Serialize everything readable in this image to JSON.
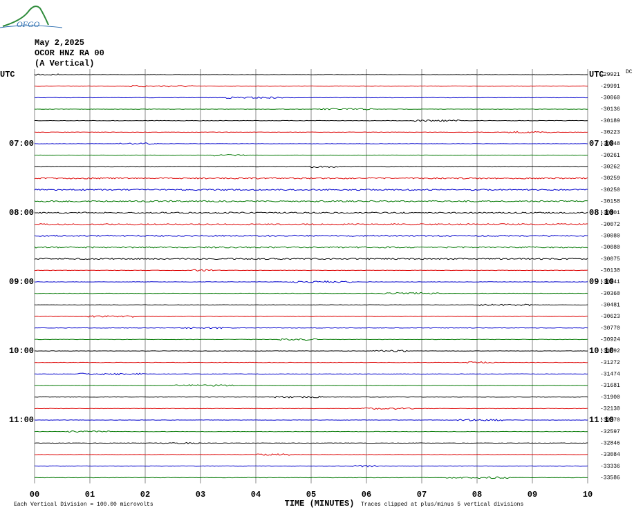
{
  "header": {
    "logo": "OFGO",
    "date": "May 2,2025",
    "station": "OCOR HNZ RA 00",
    "component": "(A Vertical)"
  },
  "left_labels": [
    "UTC",
    "07:00",
    "08:00",
    "09:00",
    "10:00",
    "11:00"
  ],
  "right_labels": [
    "UTC",
    "07:10",
    "08:10",
    "09:10",
    "10:10",
    "11:10"
  ],
  "dc_label": "DC",
  "trace_offsets": [
    -29921,
    -29991,
    -30060,
    -30136,
    -30189,
    -30223,
    -30248,
    -30261,
    -30262,
    -30259,
    -30250,
    -30158,
    -30101,
    -30072,
    -30080,
    -30080,
    -30075,
    -30130,
    -30241,
    -30360,
    -30481,
    -30623,
    -30770,
    -30924,
    -31092,
    -31272,
    -31474,
    -31681,
    -31900,
    -32130,
    -32370,
    -32597,
    -32846,
    -33084,
    -33336,
    -33586
  ],
  "x_axis": {
    "tick_labels": [
      "00",
      "01",
      "02",
      "03",
      "04",
      "05",
      "06",
      "07",
      "08",
      "09",
      "10"
    ],
    "title": "TIME (MINUTES)"
  },
  "footer": {
    "scale_note": "Each Vertical Division =  100.00 microvolts",
    "clip_note": "Traces clipped at plus/minus 5 vertical divisions"
  }
}
